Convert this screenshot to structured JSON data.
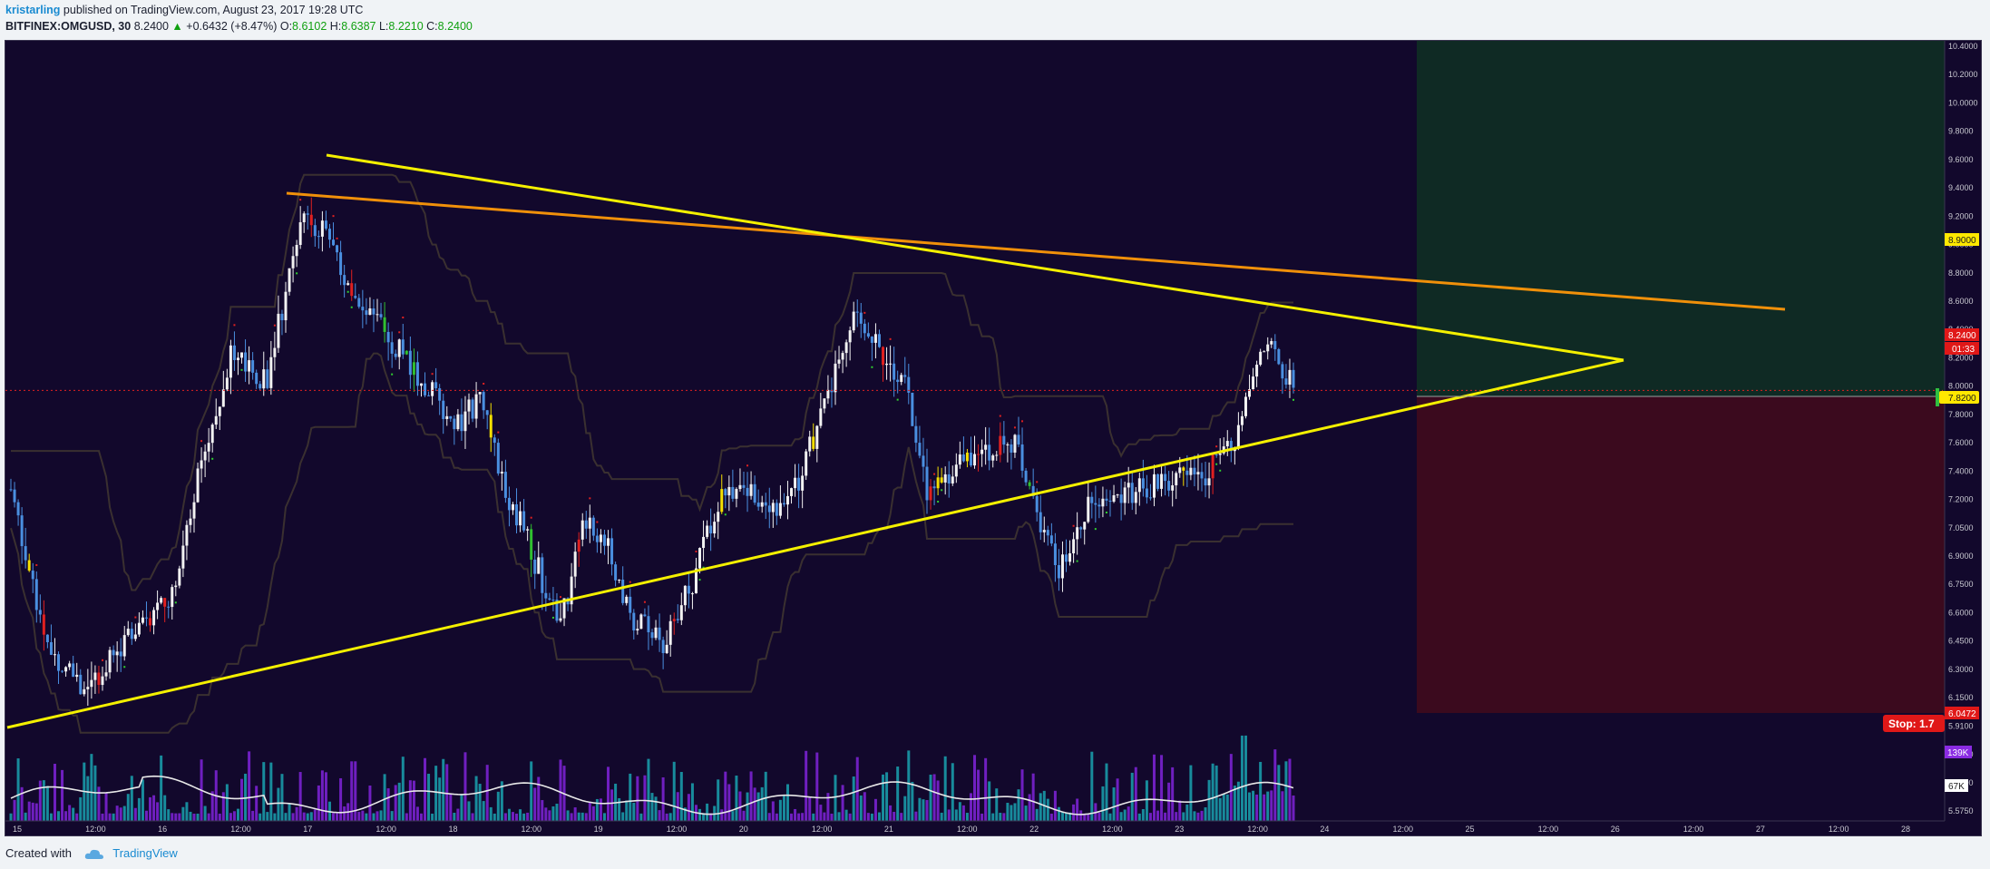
{
  "header": {
    "author": "kristarling",
    "published": "published on TradingView.com, August 23, 2017 19:28 UTC",
    "symbol": "BITFINEX:OMGUSD, 30",
    "last": "8.2400",
    "change": "+0.6432 (+8.47%)",
    "o_label": "O:",
    "o_value": "8.6102",
    "h_label": "H:",
    "h_value": "8.6387",
    "l_label": "L:",
    "l_value": "8.2210",
    "c_label": "C:",
    "c_value": "8.2400"
  },
  "footer": {
    "created_with": "Created with",
    "brand": "TradingView"
  },
  "colors": {
    "background": "#12082c",
    "up_candle": "#f2f2f2",
    "down_candle": "#4a8fe0",
    "trendline_yellow": "#f4f000",
    "trendline_orange": "#f0900a",
    "target_zone": "#0f2a24",
    "stop_zone": "#3b0a1e",
    "channel": "#3a3030",
    "volume_teal": "#1a9aa8",
    "volume_purple": "#7a22d0",
    "volume_ma": "#e8e8e8"
  },
  "chart_data": {
    "type": "candlestick",
    "symbol": "BITFINEX:OMGUSD",
    "interval": "30",
    "y_axis_ticks": [
      "10.4000",
      "10.2000",
      "10.0000",
      "9.8000",
      "9.6000",
      "9.4000",
      "9.2000",
      "9.0000",
      "8.8000",
      "8.6000",
      "8.4000",
      "8.2000",
      "8.0000",
      "7.8000",
      "7.6000",
      "7.4000",
      "7.2000",
      "7.0500",
      "6.9000",
      "6.7500",
      "6.6000",
      "6.4500",
      "6.3000",
      "6.1500",
      "5.9100",
      "5.7900",
      "5.6700",
      "5.5750"
    ],
    "x_axis_ticks": [
      "15",
      "12:00",
      "16",
      "12:00",
      "17",
      "12:00",
      "18",
      "12:00",
      "19",
      "12:00",
      "20",
      "12:00",
      "21",
      "12:00",
      "22",
      "12:00",
      "23",
      "12:00",
      "24",
      "12:00",
      "25",
      "12:00",
      "26",
      "12:00",
      "27",
      "12:00",
      "28"
    ],
    "current_price": "8.2400",
    "countdown": "01:33",
    "target_price": "8.9000",
    "entry_price": "7.8200",
    "stop_price": "6.0472",
    "stop_label": "Stop: 1.7",
    "volume_labels": [
      "139K",
      "67K"
    ],
    "ylim": [
      5.5,
      10.45
    ],
    "anchors": [
      {
        "t": 0,
        "p": 7.6
      },
      {
        "t": 10,
        "p": 6.6
      },
      {
        "t": 20,
        "p": 6.3
      },
      {
        "t": 34,
        "p": 6.7
      },
      {
        "t": 44,
        "p": 6.95
      },
      {
        "t": 52,
        "p": 7.8
      },
      {
        "t": 57,
        "p": 8.2
      },
      {
        "t": 60,
        "p": 8.45
      },
      {
        "t": 70,
        "p": 8.3
      },
      {
        "t": 76,
        "p": 9.0
      },
      {
        "t": 80,
        "p": 9.4
      },
      {
        "t": 86,
        "p": 9.25
      },
      {
        "t": 94,
        "p": 8.8
      },
      {
        "t": 103,
        "p": 8.6
      },
      {
        "t": 112,
        "p": 8.3
      },
      {
        "t": 122,
        "p": 8.0
      },
      {
        "t": 128,
        "p": 8.2
      },
      {
        "t": 135,
        "p": 7.6
      },
      {
        "t": 142,
        "p": 7.2
      },
      {
        "t": 150,
        "p": 6.7
      },
      {
        "t": 156,
        "p": 7.4
      },
      {
        "t": 163,
        "p": 7.2
      },
      {
        "t": 170,
        "p": 6.75
      },
      {
        "t": 178,
        "p": 6.6
      },
      {
        "t": 186,
        "p": 7.0
      },
      {
        "t": 194,
        "p": 7.6
      },
      {
        "t": 202,
        "p": 7.55
      },
      {
        "t": 212,
        "p": 7.5
      },
      {
        "t": 222,
        "p": 8.1
      },
      {
        "t": 230,
        "p": 8.7
      },
      {
        "t": 236,
        "p": 8.55
      },
      {
        "t": 244,
        "p": 8.3
      },
      {
        "t": 250,
        "p": 7.6
      },
      {
        "t": 258,
        "p": 7.75
      },
      {
        "t": 266,
        "p": 7.85
      },
      {
        "t": 274,
        "p": 7.9
      },
      {
        "t": 280,
        "p": 7.45
      },
      {
        "t": 286,
        "p": 7.1
      },
      {
        "t": 294,
        "p": 7.5
      },
      {
        "t": 302,
        "p": 7.6
      },
      {
        "t": 310,
        "p": 7.6
      },
      {
        "t": 318,
        "p": 7.7
      },
      {
        "t": 326,
        "p": 7.7
      },
      {
        "t": 334,
        "p": 7.9
      },
      {
        "t": 340,
        "p": 8.4
      },
      {
        "t": 345,
        "p": 8.5
      },
      {
        "t": 350,
        "p": 8.24
      }
    ]
  }
}
